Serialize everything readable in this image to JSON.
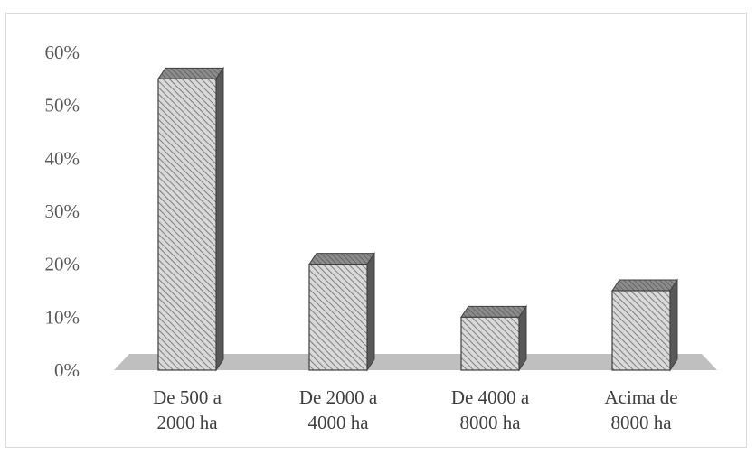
{
  "chart_data": {
    "type": "bar",
    "style": "3d-column",
    "title": "",
    "xlabel": "",
    "ylabel": "",
    "ylim": [
      0,
      0.6
    ],
    "yticks": [
      "0%",
      "10%",
      "20%",
      "30%",
      "40%",
      "50%",
      "60%"
    ],
    "categories": [
      [
        "De 500 a",
        "2000 ha"
      ],
      [
        "De 2000 a",
        "4000 ha"
      ],
      [
        "De 4000 a",
        "8000 ha"
      ],
      [
        "Acima de",
        "8000 ha"
      ]
    ],
    "values": [
      0.55,
      0.2,
      0.1,
      0.15
    ],
    "grid": false,
    "legend": "none",
    "colors": {
      "bar_fill": "#d9d9d9",
      "bar_hatch": "#7f7f7f",
      "bar_outline": "#404040",
      "bar_side": "#595959",
      "floor": "#bfbfbf",
      "text": "#595959"
    }
  }
}
